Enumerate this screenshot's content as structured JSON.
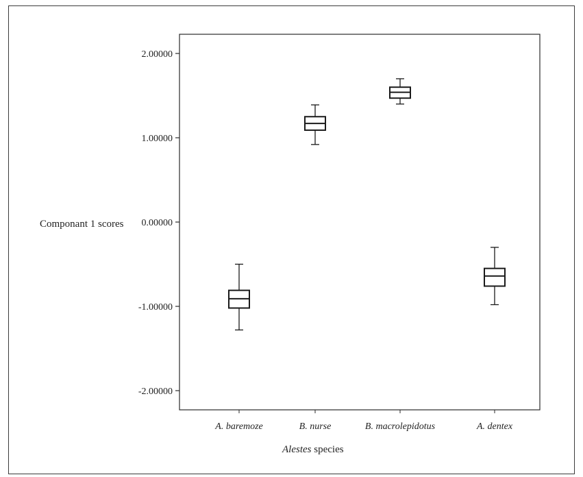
{
  "chart_data": {
    "type": "box",
    "title": "",
    "ylabel": "Componant 1 scores",
    "xlabel_italic": "Alestes",
    "xlabel_rest": " species",
    "ylim": [
      -2.2,
      2.2
    ],
    "yticks": [
      2.0,
      1.0,
      0.0,
      -1.0,
      -2.0
    ],
    "ytick_labels": [
      "2.00000",
      "1.00000",
      "0.00000",
      "-1.00000",
      "-2.00000"
    ],
    "grid": false,
    "categories": [
      "A. baremoze",
      "B. nurse",
      "B. macrolepidotus",
      "A. dentex"
    ],
    "boxes": [
      {
        "whisker_low": -1.28,
        "q1": -1.02,
        "median": -0.91,
        "q3": -0.81,
        "whisker_high": -0.5
      },
      {
        "whisker_low": 0.92,
        "q1": 1.09,
        "median": 1.17,
        "q3": 1.25,
        "whisker_high": 1.39
      },
      {
        "whisker_low": 1.4,
        "q1": 1.47,
        "median": 1.54,
        "q3": 1.6,
        "whisker_high": 1.7
      },
      {
        "whisker_low": -0.98,
        "q1": -0.76,
        "median": -0.64,
        "q3": -0.55,
        "whisker_high": -0.3
      }
    ]
  }
}
